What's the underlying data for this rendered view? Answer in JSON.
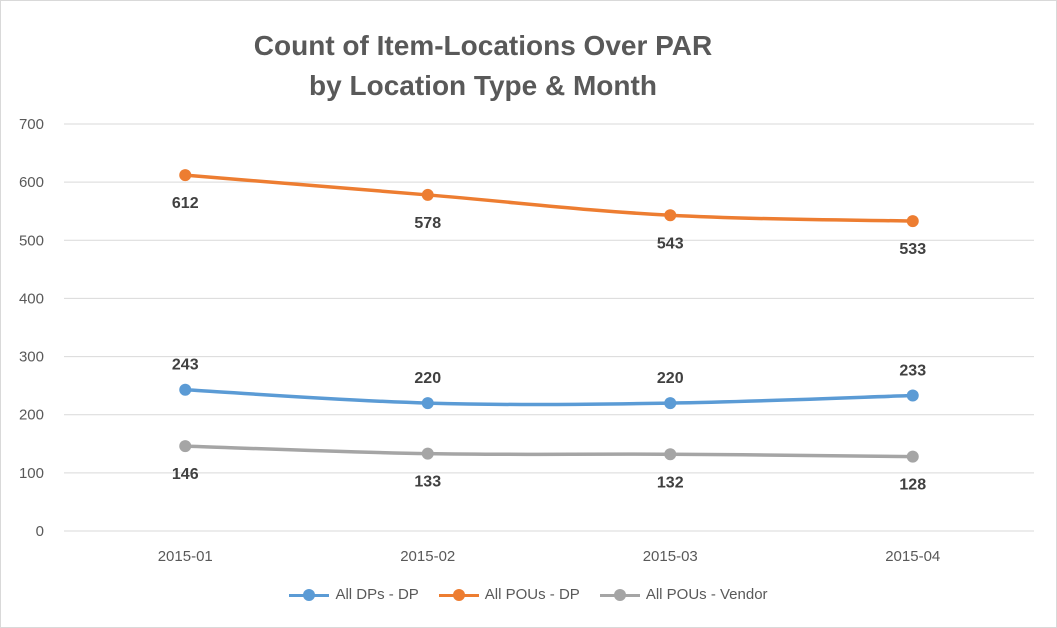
{
  "chart_data": {
    "type": "line",
    "title": "Count of Item-Locations Over PAR",
    "subtitle": "by Location Type & Month",
    "categories": [
      "2015-01",
      "2015-02",
      "2015-03",
      "2015-04"
    ],
    "yticks": [
      "0",
      "100",
      "200",
      "300",
      "400",
      "500",
      "600",
      "700"
    ],
    "ylim": [
      0,
      700
    ],
    "grid": true,
    "legend_position": "bottom",
    "series": [
      {
        "name": "All DPs - DP",
        "color": "#5b9bd5",
        "values": [
          243,
          220,
          220,
          233
        ],
        "label_position": "above"
      },
      {
        "name": "All POUs - DP",
        "color": "#ed7d31",
        "values": [
          612,
          578,
          543,
          533
        ],
        "label_position": "below"
      },
      {
        "name": "All POUs - Vendor",
        "color": "#a5a5a5",
        "values": [
          146,
          133,
          132,
          128
        ],
        "label_position": "below"
      }
    ]
  }
}
